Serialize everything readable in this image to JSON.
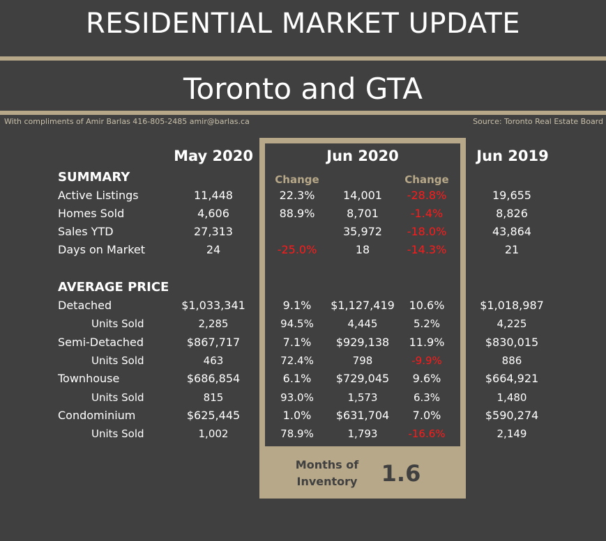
{
  "header": {
    "title": "RESIDENTIAL MARKET UPDATE",
    "subtitle": "Toronto and GTA",
    "compliments": "With compliments of Amir Barlas 416-805-2485 amir@barlas.ca",
    "source": "Source: Toronto Real Estate Board"
  },
  "columns": {
    "may2020": "May 2020",
    "jun2020": "Jun 2020",
    "jun2019": "Jun 2019",
    "change": "Change"
  },
  "summary": {
    "heading": "SUMMARY",
    "rows": [
      {
        "label": "Active Listings",
        "may": "11,448",
        "chg1": "22.3%",
        "jun": "14,001",
        "chg2": "-28.8%",
        "prev": "19,655"
      },
      {
        "label": "Homes Sold",
        "may": "4,606",
        "chg1": "88.9%",
        "jun": "8,701",
        "chg2": "-1.4%",
        "prev": "8,826"
      },
      {
        "label": "Sales YTD",
        "may": "27,313",
        "chg1": "",
        "jun": "35,972",
        "chg2": "-18.0%",
        "prev": "43,864"
      },
      {
        "label": "Days on Market",
        "may": "24",
        "chg1": "-25.0%",
        "jun": "18",
        "chg2": "-14.3%",
        "prev": "21"
      }
    ]
  },
  "avg_price": {
    "heading": "AVERAGE PRICE",
    "rows": [
      {
        "label": "Detached",
        "may": "$1,033,341",
        "chg1": "9.1%",
        "jun": "$1,127,419",
        "chg2": "10.6%",
        "prev": "$1,018,987"
      },
      {
        "label": "Units Sold",
        "may": "2,285",
        "chg1": "94.5%",
        "jun": "4,445",
        "chg2": "5.2%",
        "prev": "4,225"
      },
      {
        "label": "Semi-Detached",
        "may": "$867,717",
        "chg1": "7.1%",
        "jun": "$929,138",
        "chg2": "11.9%",
        "prev": "$830,015"
      },
      {
        "label": "Units Sold",
        "may": "463",
        "chg1": "72.4%",
        "jun": "798",
        "chg2": "-9.9%",
        "prev": "886"
      },
      {
        "label": "Townhouse",
        "may": "$686,854",
        "chg1": "6.1%",
        "jun": "$729,045",
        "chg2": "9.6%",
        "prev": "$664,921"
      },
      {
        "label": "Units Sold",
        "may": "815",
        "chg1": "93.0%",
        "jun": "1,573",
        "chg2": "6.3%",
        "prev": "1,480"
      },
      {
        "label": "Condominium",
        "may": "$625,445",
        "chg1": "1.0%",
        "jun": "$631,704",
        "chg2": "7.0%",
        "prev": "$590,274"
      },
      {
        "label": "Units Sold",
        "may": "1,002",
        "chg1": "78.9%",
        "jun": "1,793",
        "chg2": "-16.6%",
        "prev": "2,149"
      }
    ]
  },
  "inventory": {
    "label": "Months of Inventory",
    "value": "1.6"
  },
  "colors": {
    "background": "#404040",
    "accent": "#b6a888",
    "negative": "#ff1a1a"
  }
}
